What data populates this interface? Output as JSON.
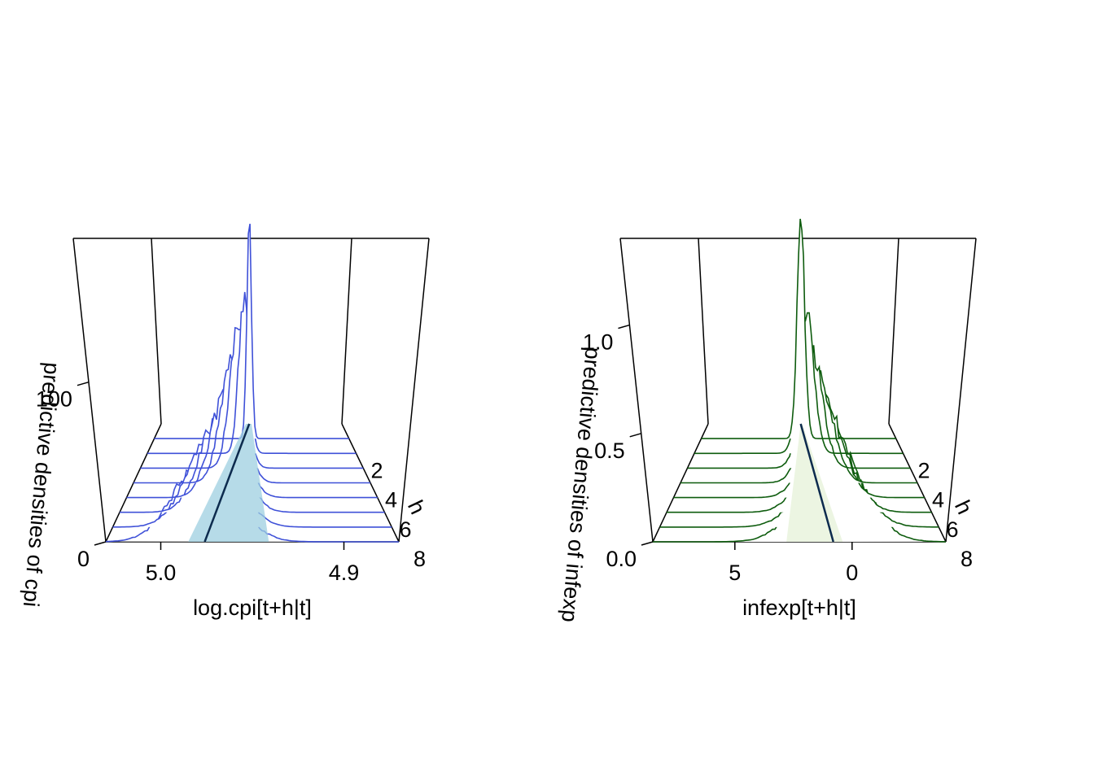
{
  "chart_data": [
    {
      "type": "area",
      "projection": "3d-waterfall",
      "series_color": "#3f51d8",
      "band_color": "#9ecfe0",
      "median_color": "#0d2b4e",
      "xlabel": "log.cpi[t+h|t]",
      "ylabel": "h",
      "zlabel": "predictive densities of cpi",
      "x_ticks": [
        "5.0",
        "4.9"
      ],
      "x_tick_values": [
        5.0,
        4.9
      ],
      "x_reversed": true,
      "xlim": [
        5.03,
        4.87
      ],
      "y_ticks": [
        "2",
        "4",
        "6",
        "8"
      ],
      "y_tick_values": [
        2,
        4,
        6,
        8
      ],
      "ylim": [
        0,
        8
      ],
      "z_ticks": [
        "0",
        "100"
      ],
      "z_tick_values": [
        0,
        100
      ],
      "zlim": [
        0,
        190
      ],
      "horizons": [
        1,
        2,
        3,
        4,
        5,
        6,
        7,
        8
      ],
      "peaks": [
        187,
        133,
        108,
        92,
        78,
        68,
        60,
        53
      ],
      "modes": [
        4.952,
        4.956,
        4.96,
        4.963,
        4.966,
        4.969,
        4.973,
        4.976
      ],
      "spreads": [
        0.002,
        0.004,
        0.006,
        0.008,
        0.01,
        0.012,
        0.014,
        0.016
      ],
      "band_lower": [
        4.955,
        4.985
      ],
      "band_upper": [
        4.95,
        4.941
      ]
    },
    {
      "type": "area",
      "projection": "3d-waterfall",
      "series_color": "#0e5c0e",
      "band_color": "#e5f2d8",
      "median_color": "#0d2b4e",
      "xlabel": "infexp[t+h|t]",
      "ylabel": "h",
      "zlabel": "predictive densities of infexp",
      "x_ticks": [
        "5",
        "0"
      ],
      "x_tick_values": [
        5,
        0
      ],
      "x_reversed": true,
      "xlim": [
        8.5,
        -4
      ],
      "y_ticks": [
        "2",
        "4",
        "6",
        "8"
      ],
      "y_tick_values": [
        2,
        4,
        6,
        8
      ],
      "ylim": [
        0,
        8
      ],
      "z_ticks": [
        "0.0",
        "0.5",
        "1.0"
      ],
      "z_tick_values": [
        0.0,
        0.5,
        1.0
      ],
      "zlim": [
        0,
        1.4
      ],
      "horizons": [
        1,
        2,
        3,
        4,
        5,
        6,
        7,
        8
      ],
      "peaks": [
        1.38,
        0.92,
        0.7,
        0.58,
        0.5,
        0.45,
        0.42,
        0.4
      ],
      "modes": [
        2.1,
        1.8,
        1.5,
        1.2,
        1.0,
        0.9,
        0.8,
        0.8
      ],
      "spreads": [
        0.25,
        0.45,
        0.6,
        0.75,
        0.9,
        1.05,
        1.2,
        1.3
      ],
      "band_lower": [
        2.1,
        2.8
      ],
      "band_upper": [
        2.0,
        0.4
      ]
    }
  ]
}
